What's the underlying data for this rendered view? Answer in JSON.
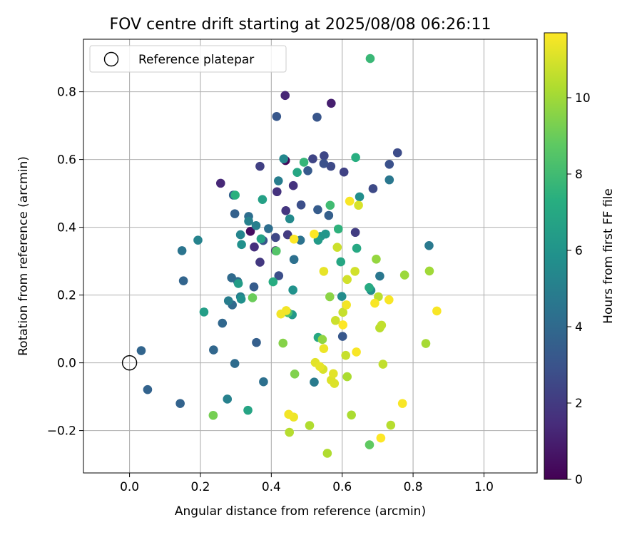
{
  "chart_data": {
    "type": "scatter",
    "title": "FOV centre drift starting at 2025/08/08 06:26:11",
    "xlabel": "Angular distance from reference (arcmin)",
    "ylabel": "Rotation from reference (arcmin)",
    "xlim": [
      -0.13,
      1.15
    ],
    "ylim": [
      -0.325,
      0.955
    ],
    "x_ticks": [
      0.0,
      0.2,
      0.4,
      0.6,
      0.8,
      1.0
    ],
    "x_tick_labels": [
      "0.0",
      "0.2",
      "0.4",
      "0.6",
      "0.8",
      "1.0"
    ],
    "y_ticks": [
      -0.2,
      0.0,
      0.2,
      0.4,
      0.6,
      0.8
    ],
    "y_tick_labels": [
      "−0.2",
      "0.0",
      "0.2",
      "0.4",
      "0.6",
      "0.8"
    ],
    "grid": true,
    "legend": {
      "position": "top-left",
      "entries": [
        "Reference platepar"
      ]
    },
    "reference_point": {
      "x": 0.0,
      "y": 0.0
    },
    "colorbar": {
      "label": "Hours from first FF file",
      "colormap": "viridis",
      "range": [
        0,
        11.7
      ],
      "ticks": [
        0,
        2,
        4,
        6,
        8,
        10
      ],
      "tick_labels": [
        "0",
        "2",
        "4",
        "6",
        "8",
        "10"
      ]
    },
    "points": [
      {
        "x": 0.44,
        "y": 0.597,
        "h": 0.2
      },
      {
        "x": 0.341,
        "y": 0.388,
        "h": 0.4
      },
      {
        "x": 0.569,
        "y": 0.766,
        "h": 1.0
      },
      {
        "x": 0.439,
        "y": 0.789,
        "h": 1.2
      },
      {
        "x": 0.257,
        "y": 0.53,
        "h": 1.3
      },
      {
        "x": 0.412,
        "y": 0.331,
        "h": 1.4
      },
      {
        "x": 0.352,
        "y": 0.342,
        "h": 1.6
      },
      {
        "x": 0.462,
        "y": 0.523,
        "h": 1.7
      },
      {
        "x": 0.416,
        "y": 0.505,
        "h": 1.7
      },
      {
        "x": 0.441,
        "y": 0.449,
        "h": 1.8
      },
      {
        "x": 0.368,
        "y": 0.297,
        "h": 1.9
      },
      {
        "x": 0.446,
        "y": 0.378,
        "h": 2.0
      },
      {
        "x": 0.637,
        "y": 0.385,
        "h": 2.1
      },
      {
        "x": 0.368,
        "y": 0.58,
        "h": 2.2
      },
      {
        "x": 0.605,
        "y": 0.563,
        "h": 2.3
      },
      {
        "x": 0.517,
        "y": 0.602,
        "h": 2.4
      },
      {
        "x": 0.412,
        "y": 0.37,
        "h": 2.5
      },
      {
        "x": 0.549,
        "y": 0.611,
        "h": 2.5
      },
      {
        "x": 0.568,
        "y": 0.58,
        "h": 2.6
      },
      {
        "x": 0.687,
        "y": 0.514,
        "h": 2.6
      },
      {
        "x": 0.756,
        "y": 0.62,
        "h": 2.7
      },
      {
        "x": 0.421,
        "y": 0.257,
        "h": 2.8
      },
      {
        "x": 0.484,
        "y": 0.466,
        "h": 2.8
      },
      {
        "x": 0.548,
        "y": 0.588,
        "h": 2.9
      },
      {
        "x": 0.733,
        "y": 0.586,
        "h": 2.9
      },
      {
        "x": 0.377,
        "y": 0.361,
        "h": 3.0
      },
      {
        "x": 0.529,
        "y": 0.725,
        "h": 3.1
      },
      {
        "x": 0.415,
        "y": 0.727,
        "h": 3.2
      },
      {
        "x": 0.601,
        "y": 0.078,
        "h": 3.2
      },
      {
        "x": 0.503,
        "y": 0.567,
        "h": 3.3
      },
      {
        "x": 0.531,
        "y": 0.452,
        "h": 3.4
      },
      {
        "x": 0.351,
        "y": 0.224,
        "h": 3.4
      },
      {
        "x": 0.562,
        "y": 0.435,
        "h": 3.5
      },
      {
        "x": 0.358,
        "y": 0.06,
        "h": 3.5
      },
      {
        "x": 0.293,
        "y": 0.495,
        "h": 3.6
      },
      {
        "x": 0.297,
        "y": 0.44,
        "h": 3.6
      },
      {
        "x": 0.143,
        "y": -0.12,
        "h": 3.7
      },
      {
        "x": 0.051,
        "y": -0.079,
        "h": 3.7
      },
      {
        "x": 0.033,
        "y": 0.036,
        "h": 3.8
      },
      {
        "x": 0.152,
        "y": 0.242,
        "h": 3.8
      },
      {
        "x": 0.262,
        "y": 0.117,
        "h": 3.9
      },
      {
        "x": 0.237,
        "y": 0.038,
        "h": 3.9
      },
      {
        "x": 0.288,
        "y": 0.251,
        "h": 4.0
      },
      {
        "x": 0.29,
        "y": 0.171,
        "h": 4.0
      },
      {
        "x": 0.297,
        "y": -0.002,
        "h": 4.1
      },
      {
        "x": 0.305,
        "y": 0.24,
        "h": 4.1
      },
      {
        "x": 0.336,
        "y": 0.432,
        "h": 4.2
      },
      {
        "x": 0.392,
        "y": 0.396,
        "h": 4.2
      },
      {
        "x": 0.378,
        "y": -0.056,
        "h": 4.3
      },
      {
        "x": 0.464,
        "y": 0.305,
        "h": 4.3
      },
      {
        "x": 0.482,
        "y": 0.362,
        "h": 4.4
      },
      {
        "x": 0.148,
        "y": 0.331,
        "h": 4.5
      },
      {
        "x": 0.733,
        "y": 0.54,
        "h": 4.6
      },
      {
        "x": 0.706,
        "y": 0.256,
        "h": 4.6
      },
      {
        "x": 0.845,
        "y": 0.346,
        "h": 4.7
      },
      {
        "x": 0.521,
        "y": -0.057,
        "h": 4.8
      },
      {
        "x": 0.42,
        "y": 0.537,
        "h": 4.9
      },
      {
        "x": 0.279,
        "y": 0.183,
        "h": 4.9
      },
      {
        "x": 0.313,
        "y": 0.195,
        "h": 5.0
      },
      {
        "x": 0.357,
        "y": 0.405,
        "h": 5.0
      },
      {
        "x": 0.336,
        "y": 0.418,
        "h": 5.1
      },
      {
        "x": 0.276,
        "y": -0.107,
        "h": 5.1
      },
      {
        "x": 0.193,
        "y": 0.362,
        "h": 5.2
      },
      {
        "x": 0.313,
        "y": 0.378,
        "h": 5.3
      },
      {
        "x": 0.435,
        "y": 0.602,
        "h": 5.4
      },
      {
        "x": 0.452,
        "y": 0.425,
        "h": 5.5
      },
      {
        "x": 0.599,
        "y": 0.196,
        "h": 5.6
      },
      {
        "x": 0.681,
        "y": 0.214,
        "h": 5.7
      },
      {
        "x": 0.649,
        "y": 0.49,
        "h": 5.7
      },
      {
        "x": 0.316,
        "y": 0.349,
        "h": 5.8
      },
      {
        "x": 0.315,
        "y": 0.188,
        "h": 5.8
      },
      {
        "x": 0.461,
        "y": 0.215,
        "h": 5.9
      },
      {
        "x": 0.539,
        "y": 0.373,
        "h": 6.0
      },
      {
        "x": 0.553,
        "y": 0.38,
        "h": 6.1
      },
      {
        "x": 0.459,
        "y": 0.142,
        "h": 6.2
      },
      {
        "x": 0.532,
        "y": 0.362,
        "h": 6.3
      },
      {
        "x": 0.307,
        "y": 0.234,
        "h": 6.4
      },
      {
        "x": 0.21,
        "y": 0.15,
        "h": 6.5
      },
      {
        "x": 0.375,
        "y": 0.482,
        "h": 6.6
      },
      {
        "x": 0.371,
        "y": 0.366,
        "h": 6.7
      },
      {
        "x": 0.334,
        "y": -0.14,
        "h": 6.8
      },
      {
        "x": 0.473,
        "y": 0.562,
        "h": 6.9
      },
      {
        "x": 0.596,
        "y": 0.298,
        "h": 6.9
      },
      {
        "x": 0.532,
        "y": 0.075,
        "h": 7.0
      },
      {
        "x": 0.641,
        "y": 0.338,
        "h": 7.0
      },
      {
        "x": 0.676,
        "y": 0.222,
        "h": 7.1
      },
      {
        "x": 0.405,
        "y": 0.239,
        "h": 7.2
      },
      {
        "x": 0.638,
        "y": 0.606,
        "h": 7.3
      },
      {
        "x": 0.298,
        "y": 0.495,
        "h": 7.4
      },
      {
        "x": 0.589,
        "y": 0.395,
        "h": 7.5
      },
      {
        "x": 0.492,
        "y": 0.592,
        "h": 7.7
      },
      {
        "x": 0.679,
        "y": 0.898,
        "h": 7.8
      },
      {
        "x": 0.566,
        "y": 0.465,
        "h": 8.0
      },
      {
        "x": 0.447,
        "y": 0.148,
        "h": 8.3
      },
      {
        "x": 0.414,
        "y": 0.33,
        "h": 8.5
      },
      {
        "x": 0.677,
        "y": -0.242,
        "h": 8.8
      },
      {
        "x": 0.347,
        "y": 0.192,
        "h": 9.0
      },
      {
        "x": 0.236,
        "y": -0.155,
        "h": 9.2
      },
      {
        "x": 0.466,
        "y": -0.033,
        "h": 9.4
      },
      {
        "x": 0.433,
        "y": 0.058,
        "h": 9.5
      },
      {
        "x": 0.565,
        "y": 0.195,
        "h": 9.6
      },
      {
        "x": 0.544,
        "y": 0.069,
        "h": 9.7
      },
      {
        "x": 0.696,
        "y": 0.306,
        "h": 9.8
      },
      {
        "x": 0.776,
        "y": 0.259,
        "h": 9.9
      },
      {
        "x": 0.846,
        "y": 0.271,
        "h": 10.0
      },
      {
        "x": 0.836,
        "y": 0.057,
        "h": 10.1
      },
      {
        "x": 0.614,
        "y": -0.041,
        "h": 10.2
      },
      {
        "x": 0.626,
        "y": -0.154,
        "h": 10.2
      },
      {
        "x": 0.508,
        "y": -0.185,
        "h": 10.3
      },
      {
        "x": 0.558,
        "y": -0.267,
        "h": 10.3
      },
      {
        "x": 0.451,
        "y": -0.205,
        "h": 10.4
      },
      {
        "x": 0.737,
        "y": -0.184,
        "h": 10.4
      },
      {
        "x": 0.706,
        "y": 0.103,
        "h": 10.5
      },
      {
        "x": 0.702,
        "y": 0.195,
        "h": 10.5
      },
      {
        "x": 0.711,
        "y": 0.111,
        "h": 10.6
      },
      {
        "x": 0.715,
        "y": -0.004,
        "h": 10.6
      },
      {
        "x": 0.602,
        "y": 0.149,
        "h": 10.7
      },
      {
        "x": 0.61,
        "y": 0.022,
        "h": 10.7
      },
      {
        "x": 0.581,
        "y": 0.125,
        "h": 10.8
      },
      {
        "x": 0.586,
        "y": 0.341,
        "h": 10.8
      },
      {
        "x": 0.614,
        "y": 0.246,
        "h": 10.9
      },
      {
        "x": 0.636,
        "y": 0.27,
        "h": 10.9
      },
      {
        "x": 0.646,
        "y": 0.465,
        "h": 11.0
      },
      {
        "x": 0.546,
        "y": -0.019,
        "h": 11.0
      },
      {
        "x": 0.569,
        "y": -0.051,
        "h": 11.1
      },
      {
        "x": 0.578,
        "y": -0.061,
        "h": 11.1
      },
      {
        "x": 0.575,
        "y": -0.032,
        "h": 11.2
      },
      {
        "x": 0.524,
        "y": 0.001,
        "h": 11.2
      },
      {
        "x": 0.537,
        "y": -0.011,
        "h": 11.3
      },
      {
        "x": 0.548,
        "y": 0.27,
        "h": 11.3
      },
      {
        "x": 0.548,
        "y": 0.042,
        "h": 11.4
      },
      {
        "x": 0.463,
        "y": -0.16,
        "h": 11.4
      },
      {
        "x": 0.449,
        "y": -0.152,
        "h": 11.5
      },
      {
        "x": 0.427,
        "y": 0.144,
        "h": 11.5
      },
      {
        "x": 0.442,
        "y": 0.154,
        "h": 11.5
      },
      {
        "x": 0.612,
        "y": 0.171,
        "h": 11.5
      },
      {
        "x": 0.621,
        "y": 0.477,
        "h": 11.6
      },
      {
        "x": 0.64,
        "y": 0.032,
        "h": 11.6
      },
      {
        "x": 0.692,
        "y": 0.176,
        "h": 11.6
      },
      {
        "x": 0.732,
        "y": 0.186,
        "h": 11.6
      },
      {
        "x": 0.77,
        "y": -0.12,
        "h": 11.6
      },
      {
        "x": 0.867,
        "y": 0.153,
        "h": 11.6
      },
      {
        "x": 0.602,
        "y": 0.112,
        "h": 11.7
      },
      {
        "x": 0.464,
        "y": 0.365,
        "h": 11.7
      },
      {
        "x": 0.521,
        "y": 0.38,
        "h": 11.7
      },
      {
        "x": 0.709,
        "y": -0.222,
        "h": 11.7
      }
    ]
  }
}
